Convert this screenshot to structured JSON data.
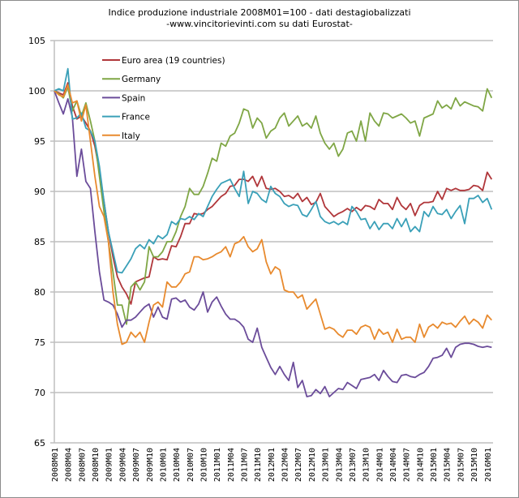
{
  "chart_data": {
    "type": "line",
    "title": "Indice produzione industriale  2008M01=100 - dati destagiobalizzati",
    "subtitle": "-www.vincitorievinti.com su dati Eurostat-",
    "xlabel": "",
    "ylabel": "",
    "ylim": [
      65,
      105
    ],
    "yticks": [
      65,
      70,
      75,
      80,
      85,
      90,
      95,
      100,
      105
    ],
    "grid": true,
    "legend_position": "top-left",
    "x_tick_labels": [
      "2008M01",
      "2008M04",
      "2008M07",
      "2008M10",
      "2009M01",
      "2009M04",
      "2009M07",
      "2009M10",
      "2010M01",
      "2010M04",
      "2010M07",
      "2010M10",
      "2011M01",
      "2011M04",
      "2011M07",
      "2011M10",
      "2012M01",
      "2012M04",
      "2012M07",
      "2012M10",
      "2013M01",
      "2013M04",
      "2013M07",
      "2013M10",
      "2014M01",
      "2014M04",
      "2014M07",
      "2014M10",
      "2015M01",
      "2015M04",
      "2015M07",
      "2015M10",
      "2016M01"
    ],
    "x_start": "2008M01",
    "x_end": "2016M02",
    "series": [
      {
        "name": "Euro area (19 countries)",
        "color": "#b0363a",
        "values": [
          100,
          99.8,
          99.6,
          100.8,
          98.5,
          97.2,
          97.5,
          96.8,
          96.0,
          94.5,
          92.0,
          89.0,
          86.0,
          83.5,
          81.5,
          80.5,
          79.8,
          78.8,
          81.0,
          81.2,
          81.4,
          81.5,
          83.5,
          83.2,
          83.3,
          83.2,
          84.6,
          84.5,
          85.5,
          86.8,
          86.8,
          87.8,
          87.7,
          87.8,
          88.2,
          88.5,
          89.0,
          89.5,
          89.8,
          90.5,
          90.6,
          91.2,
          91.2,
          91.0,
          91.5,
          90.5,
          91.5,
          90.3,
          90.2,
          90.3,
          90.0,
          89.5,
          89.6,
          89.3,
          89.8,
          89.0,
          89.4,
          88.7,
          88.9,
          89.8,
          88.5,
          88.0,
          87.5,
          87.8,
          88.0,
          88.3,
          88.0,
          88.4,
          88.1,
          88.6,
          88.5,
          88.2,
          89.2,
          88.8,
          88.8,
          88.2,
          89.4,
          88.6,
          88.2,
          88.8,
          87.6,
          88.6,
          88.9,
          88.9,
          89.0,
          90.0,
          89.2,
          90.3,
          90.1,
          90.3,
          90.1,
          90.1,
          90.2,
          90.6,
          90.5,
          90.1,
          91.9,
          91.2
        ]
      },
      {
        "name": "Germany",
        "color": "#7fa645",
        "values": [
          100,
          99.7,
          99.3,
          100.4,
          98.0,
          99.0,
          97.5,
          98.8,
          97.0,
          95.0,
          91.5,
          88.0,
          85.0,
          82.0,
          78.7,
          78.7,
          76.8,
          80.5,
          81.0,
          80.2,
          81.0,
          84.5,
          83.5,
          83.5,
          84.0,
          85.0,
          85.0,
          86.0,
          87.5,
          88.5,
          90.3,
          89.7,
          89.7,
          90.5,
          91.8,
          93.3,
          93.0,
          94.8,
          94.5,
          95.5,
          95.8,
          96.8,
          98.2,
          98.0,
          96.3,
          97.3,
          96.8,
          95.3,
          96.0,
          96.3,
          97.3,
          97.8,
          96.5,
          97.0,
          97.5,
          96.5,
          96.8,
          96.3,
          97.5,
          95.8,
          94.8,
          94.2,
          94.8,
          93.5,
          94.2,
          95.8,
          96.0,
          95.0,
          97.0,
          95.0,
          97.8,
          97.0,
          96.5,
          97.8,
          97.7,
          97.3,
          97.5,
          97.7,
          97.3,
          96.8,
          97.0,
          95.5,
          97.3,
          97.5,
          97.7,
          99.0,
          98.3,
          98.6,
          98.2,
          99.3,
          98.5,
          98.9,
          98.7,
          98.5,
          98.4,
          98.0,
          100.2,
          99.3
        ]
      },
      {
        "name": "Spain",
        "color": "#6b4c9a",
        "values": [
          100,
          98.8,
          97.7,
          99.2,
          97.4,
          91.5,
          94.2,
          91.0,
          90.3,
          86.0,
          82.0,
          79.2,
          79.0,
          78.7,
          77.8,
          76.5,
          77.2,
          77.2,
          77.5,
          78.0,
          78.5,
          78.8,
          77.5,
          78.5,
          77.5,
          77.3,
          79.3,
          79.4,
          79.0,
          79.2,
          78.5,
          78.2,
          78.8,
          80.0,
          78.0,
          79.0,
          79.5,
          78.6,
          77.8,
          77.3,
          77.3,
          77.0,
          76.5,
          75.3,
          75.0,
          76.4,
          74.5,
          73.5,
          72.5,
          71.8,
          72.6,
          71.8,
          71.2,
          73.0,
          70.5,
          71.2,
          69.6,
          69.7,
          70.3,
          69.9,
          70.6,
          69.6,
          70.0,
          70.4,
          70.3,
          71.0,
          70.7,
          70.4,
          71.3,
          71.4,
          71.5,
          71.8,
          71.2,
          72.2,
          71.6,
          71.1,
          71.0,
          71.7,
          71.8,
          71.6,
          71.5,
          71.8,
          72.0,
          72.6,
          73.4,
          73.5,
          73.7,
          74.4,
          73.5,
          74.5,
          74.8,
          74.9,
          74.9,
          74.8,
          74.6,
          74.5,
          74.6,
          74.5
        ]
      },
      {
        "name": "France",
        "color": "#3aa0b8",
        "values": [
          100,
          100.2,
          100.0,
          102.2,
          97.2,
          97.3,
          97.8,
          96.3,
          96.0,
          95.0,
          92.5,
          89.0,
          86.0,
          84.0,
          82.0,
          81.9,
          82.6,
          83.3,
          84.3,
          84.7,
          84.3,
          85.2,
          84.8,
          85.6,
          85.3,
          85.7,
          87.0,
          86.7,
          87.3,
          87.2,
          87.5,
          87.2,
          87.8,
          87.5,
          88.5,
          89.5,
          90.2,
          90.8,
          91.0,
          91.2,
          90.3,
          89.5,
          92.0,
          88.8,
          90.0,
          89.8,
          89.2,
          88.9,
          90.5,
          89.8,
          89.5,
          88.8,
          88.5,
          88.7,
          88.6,
          87.7,
          87.5,
          88.2,
          89.0,
          87.5,
          87.0,
          86.8,
          87.0,
          86.7,
          87.0,
          86.7,
          88.5,
          88.0,
          87.2,
          87.3,
          86.3,
          87.0,
          86.2,
          86.8,
          86.8,
          86.3,
          87.3,
          86.5,
          87.3,
          86.0,
          86.5,
          86.0,
          88.0,
          87.5,
          88.5,
          87.8,
          87.7,
          88.2,
          87.3,
          88.0,
          88.6,
          86.8,
          89.3,
          89.3,
          89.6,
          88.9,
          89.3,
          88.2
        ]
      },
      {
        "name": "Italy",
        "color": "#e88a2e",
        "values": [
          100,
          99.6,
          99.4,
          100.6,
          98.8,
          99.0,
          97.0,
          98.6,
          95.0,
          91.5,
          88.5,
          87.5,
          85.0,
          80.0,
          76.8,
          74.8,
          75.0,
          76.0,
          75.5,
          76.0,
          75.0,
          77.0,
          78.7,
          79.0,
          78.5,
          81.0,
          80.5,
          80.5,
          81.0,
          81.8,
          82.0,
          83.5,
          83.5,
          83.2,
          83.3,
          83.5,
          83.8,
          84.0,
          84.5,
          83.5,
          84.8,
          85.0,
          85.5,
          84.5,
          84.0,
          84.3,
          85.2,
          83.0,
          81.8,
          82.5,
          82.2,
          80.2,
          80.0,
          80.0,
          79.4,
          79.7,
          78.3,
          78.8,
          79.3,
          77.8,
          76.3,
          76.5,
          76.3,
          75.8,
          75.5,
          76.2,
          76.2,
          75.8,
          76.5,
          76.7,
          76.5,
          75.3,
          76.3,
          75.8,
          76.0,
          75.0,
          76.3,
          75.3,
          75.5,
          75.5,
          75.0,
          76.8,
          75.5,
          76.5,
          76.8,
          76.4,
          77.0,
          76.8,
          76.9,
          76.5,
          77.1,
          77.6,
          76.8,
          77.3,
          77.0,
          76.4,
          77.7,
          77.2
        ]
      }
    ]
  }
}
